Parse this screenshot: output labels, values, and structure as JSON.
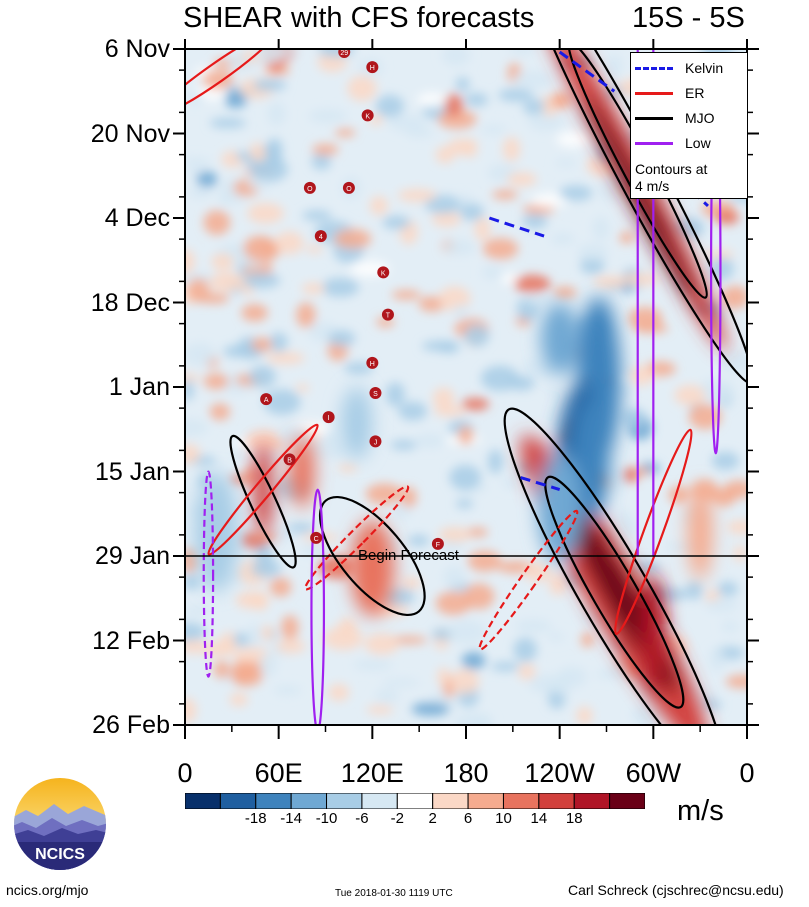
{
  "chart_data": {
    "type": "heatmap",
    "title": "SHEAR with CFS forecasts",
    "region": "15S - 5S",
    "y_axis": {
      "ticks": [
        "6 Nov",
        "20 Nov",
        "4 Dec",
        "18 Dec",
        "1 Jan",
        "15 Jan",
        "29 Jan",
        "12 Feb",
        "26 Feb"
      ],
      "range_days": [
        0,
        112
      ],
      "direction": "time increases downward"
    },
    "x_axis": {
      "ticks": [
        "0",
        "60E",
        "120E",
        "180",
        "120W",
        "60W",
        "0"
      ],
      "range_deg_east": [
        0,
        360
      ]
    },
    "forecast_start": {
      "label": "Begin Forecast",
      "day": 84
    },
    "legend": [
      {
        "name": "Kelvin",
        "color": "#1a1ae6"
      },
      {
        "name": "ER",
        "color": "#e61a1a"
      },
      {
        "name": "MJO",
        "color": "#000000"
      },
      {
        "name": "Low",
        "color": "#a020f0"
      }
    ],
    "legend_note": [
      "Contours at",
      "4 m/s"
    ],
    "colorbar": {
      "labels": [
        "-18",
        "-14",
        "-10",
        "-6",
        "-2",
        "2",
        "6",
        "10",
        "14",
        "18"
      ],
      "colors": [
        "#08306b",
        "#1f5fa0",
        "#3e83bd",
        "#6fa8d3",
        "#a8cde6",
        "#d6e8f3",
        "#ffffff",
        "#fbd8c6",
        "#f5ab8f",
        "#e8735e",
        "#d2403c",
        "#b01527",
        "#6a0017"
      ],
      "units": "m/s"
    },
    "features": {
      "mjo_contours": [
        {
          "lon": 290,
          "day": 20,
          "rx": 14,
          "ry": 40,
          "tilt": -28
        },
        {
          "lon": 290,
          "day": 20,
          "rx": 9,
          "ry": 24,
          "tilt": -28
        },
        {
          "lon": 275,
          "day": 90,
          "rx": 22,
          "ry": 35,
          "tilt": -30
        },
        {
          "lon": 275,
          "day": 90,
          "rx": 14,
          "ry": 22,
          "tilt": -30
        },
        {
          "lon": 50,
          "day": 75,
          "rx": 8,
          "ry": 12,
          "tilt": -25
        },
        {
          "lon": 120,
          "day": 84,
          "rx": 20,
          "ry": 12,
          "tilt": -40
        }
      ],
      "er_contours": [
        {
          "lon": 50,
          "day": 73,
          "rx": 5,
          "ry": 14,
          "tilt": 40
        },
        {
          "lon": 110,
          "day": 81,
          "rx": 5,
          "ry": 12,
          "tilt": 45
        },
        {
          "lon": 300,
          "day": 80,
          "rx": 6,
          "ry": 18,
          "tilt": 20
        },
        {
          "lon": 220,
          "day": 88,
          "rx": 5,
          "ry": 14,
          "tilt": 35
        },
        {
          "lon": 20,
          "day": 4,
          "rx": 6,
          "ry": 12,
          "tilt": 55
        }
      ],
      "low_contours": [
        {
          "lon": 85,
          "day": 93,
          "rx": 4,
          "ry": 20,
          "tilt": 0
        },
        {
          "lon": 15,
          "day": 87,
          "rx": 3,
          "ry": 17,
          "tilt": 0
        },
        {
          "lon": 340,
          "day": 37,
          "rx": 3,
          "ry": 30,
          "tilt": 0
        }
      ],
      "kelvin_segments": [
        {
          "lon1": 240,
          "day1": 0.5,
          "lon2": 275,
          "day2": 7
        },
        {
          "lon1": 310,
          "day1": 20,
          "lon2": 335,
          "day2": 26
        },
        {
          "lon1": 195,
          "day1": 28,
          "lon2": 230,
          "day2": 31
        },
        {
          "lon1": 215,
          "day1": 71,
          "lon2": 240,
          "day2": 73
        }
      ],
      "tc_markers": [
        "29",
        "H",
        "K",
        "O",
        "O",
        "4",
        "K",
        "T",
        "H",
        "S",
        "A",
        "I",
        "J",
        "B",
        "C",
        "F"
      ]
    }
  },
  "footer": {
    "website": "ncics.org/mjo",
    "timestamp": "Tue 2018-01-30 1119 UTC",
    "credit": "Carl Schreck (cjschrec@ncsu.edu)"
  },
  "logo": {
    "text": "NCICS"
  }
}
